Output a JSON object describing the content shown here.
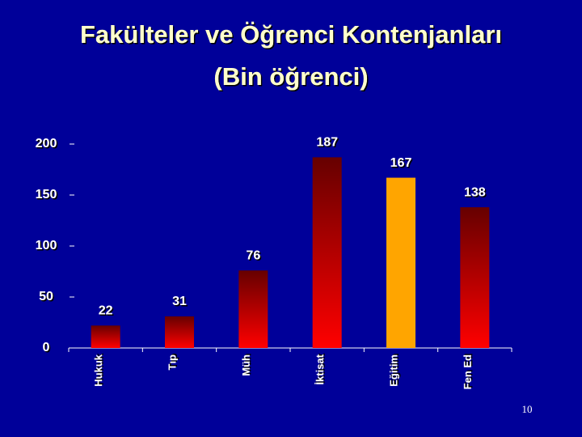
{
  "chart_data": {
    "type": "bar",
    "title": "Fakülteler ve Öğrenci Kontenjanları",
    "subtitle": "(Bin öğrenci)",
    "categories": [
      "Hukuk",
      "Tıp",
      "Müh",
      "İktisat",
      "Eğitim",
      "Fen Ed"
    ],
    "values": [
      22,
      31,
      76,
      187,
      167,
      138
    ],
    "colors": [
      "#ff0000",
      "#ff0000",
      "#ff0000",
      "#ff0000",
      "#ffa500",
      "#ff0000"
    ],
    "ylim": [
      0,
      200
    ],
    "yticks": [
      0,
      50,
      100,
      150,
      200
    ],
    "grid": false
  },
  "page_number": "10"
}
